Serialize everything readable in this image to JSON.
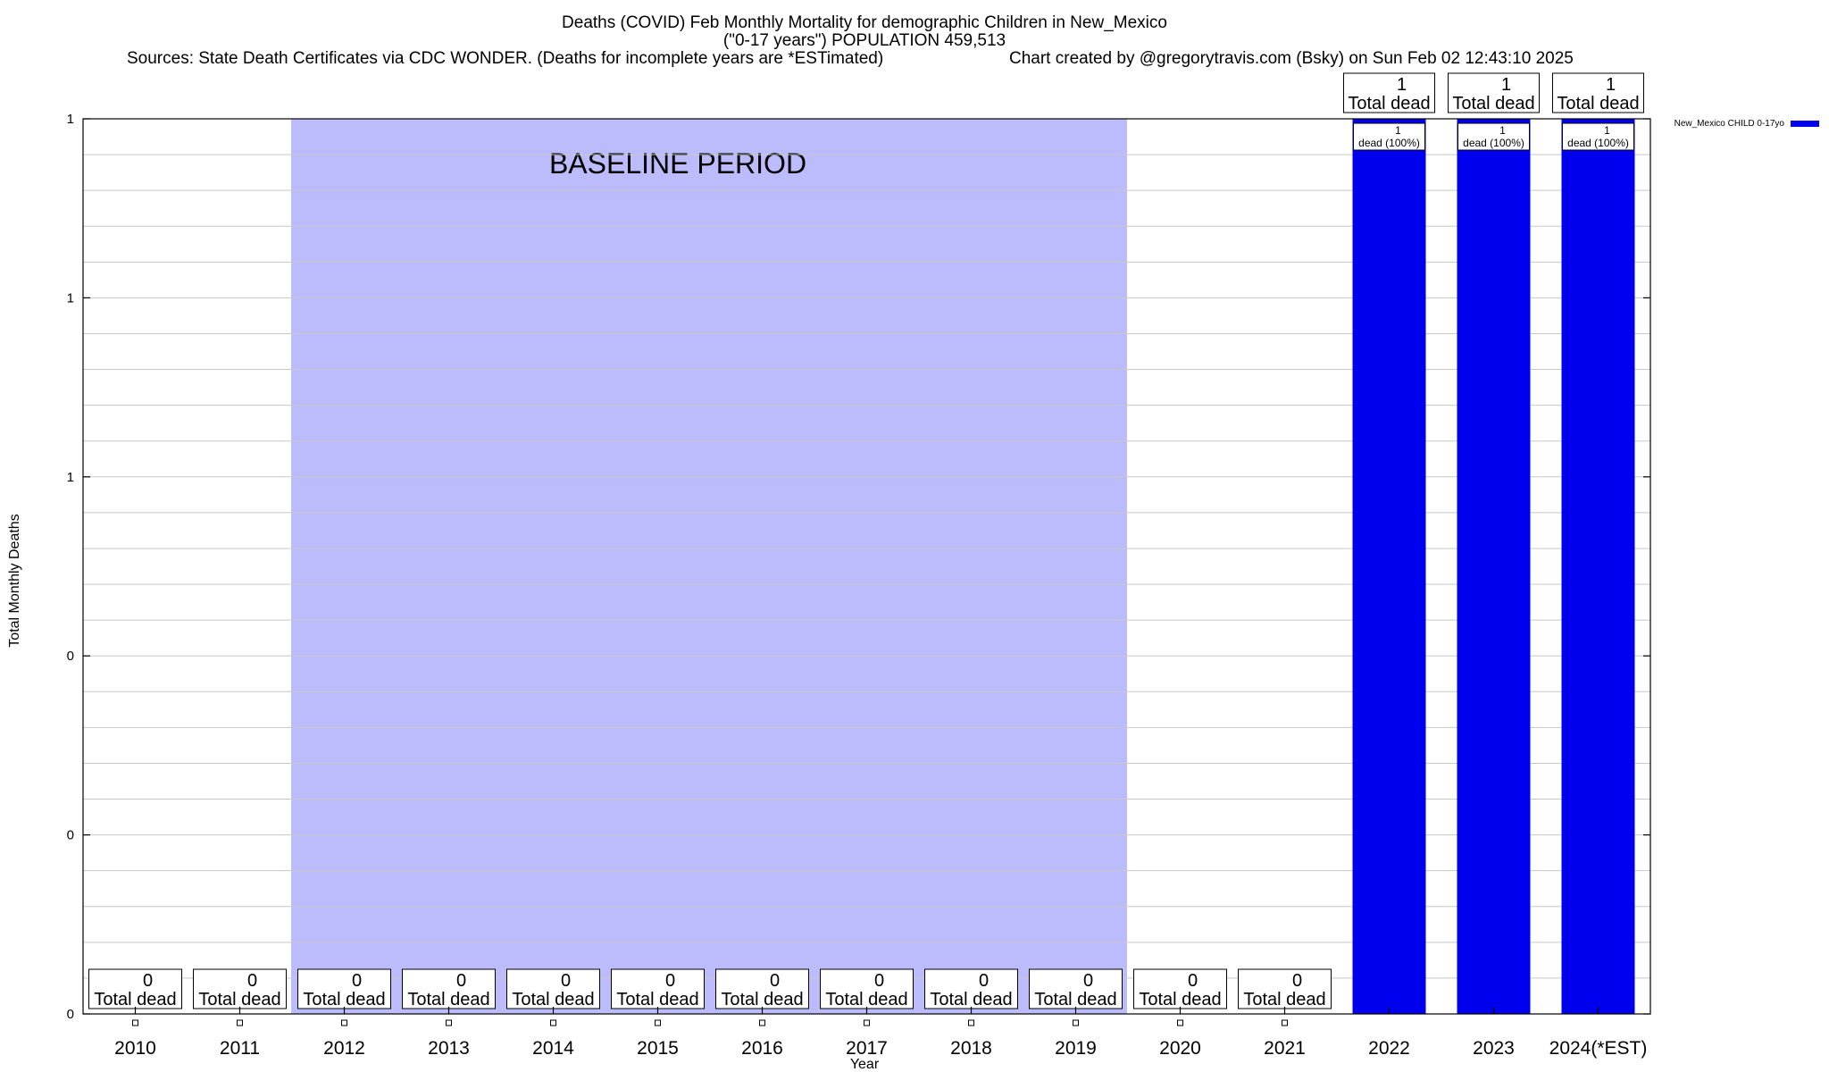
{
  "chart_data": {
    "type": "bar",
    "title_lines": [
      "Deaths (COVID) Feb Monthly Mortality for demographic Children in New_Mexico",
      "(\"0-17 years\") POPULATION 459,513"
    ],
    "subtitle_left": "Sources: State Death Certificates via CDC WONDER. (Deaths for incomplete years are *ESTimated)",
    "subtitle_right": "Chart created by @gregorytravis.com (Bsky) on Sun Feb 02 12:43:10 2025",
    "xlabel": "Year",
    "ylabel": "Total Monthly Deaths",
    "ylim": [
      0,
      1
    ],
    "y_ticks": [
      {
        "value": 0,
        "label": "0"
      },
      {
        "value": 0.2,
        "label": "0"
      },
      {
        "value": 0.4,
        "label": "0"
      },
      {
        "value": 0.6,
        "label": "1"
      },
      {
        "value": 0.8,
        "label": "1"
      },
      {
        "value": 1.0,
        "label": "1"
      }
    ],
    "grid": true,
    "legend_position": "top-right",
    "baseline": {
      "label": "BASELINE PERIOD",
      "from": "2012",
      "to": "2019",
      "color": "#bcbcfc"
    },
    "categories": [
      "2010",
      "2011",
      "2012",
      "2013",
      "2014",
      "2015",
      "2016",
      "2017",
      "2018",
      "2019",
      "2020",
      "2021",
      "2022",
      "2023",
      "2024(*EST)"
    ],
    "series": [
      {
        "name": "New_Mexico CHILD 0-17yo",
        "color": "#0000ee",
        "values": [
          0,
          0,
          0,
          0,
          0,
          0,
          0,
          0,
          0,
          0,
          0,
          0,
          1,
          1,
          1
        ]
      }
    ],
    "total_label_suffix": "Total dead",
    "bar_inner_labels": [
      "",
      "",
      "",
      "",
      "",
      "",
      "",
      "",
      "",
      "",
      "",
      "",
      "1|dead (100%)",
      "1|dead (100%)",
      "1|dead (100%)"
    ]
  }
}
